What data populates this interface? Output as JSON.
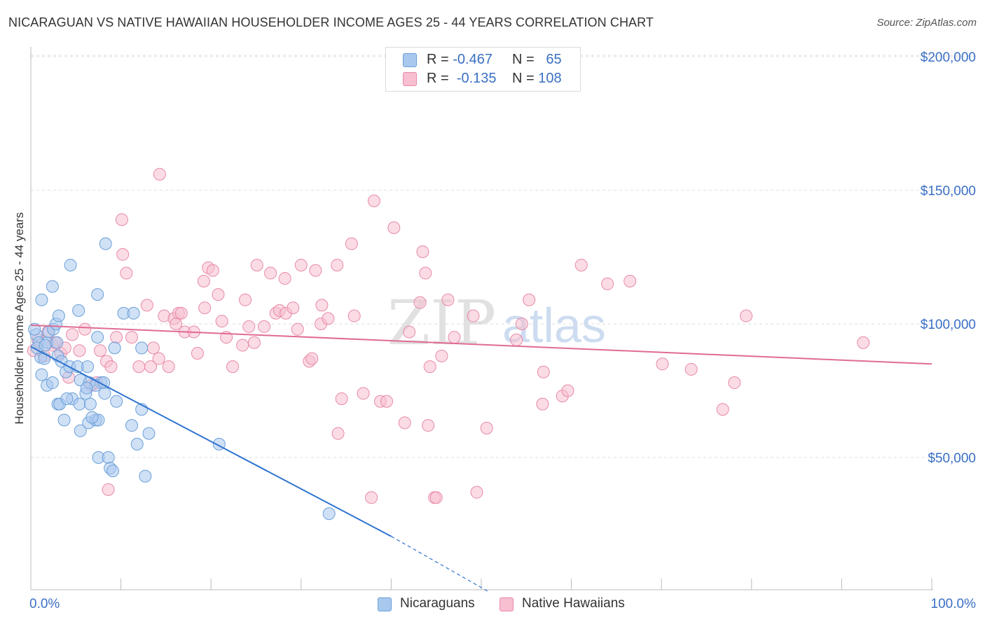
{
  "title": "NICARAGUAN VS NATIVE HAWAIIAN HOUSEHOLDER INCOME AGES 25 - 44 YEARS CORRELATION CHART",
  "source": "Source: ZipAtlas.com",
  "watermark": {
    "zip": "ZIP",
    "atlas": "atlas"
  },
  "legend": {
    "rows": [
      {
        "r_label": "R =",
        "r_value": "-0.467",
        "n_label": "N =",
        "n_value": "65",
        "color": "#a9c8ee",
        "border": "#6a9fd8"
      },
      {
        "r_label": "R =",
        "r_value": "-0.135",
        "n_label": "N =",
        "n_value": "108",
        "color": "#f7bfd0",
        "border": "#e889a8"
      }
    ]
  },
  "bottom_legend": [
    "Nicaraguans",
    "Native Hawaiians"
  ],
  "chart_data": {
    "type": "scatter",
    "title": "NICARAGUAN VS NATIVE HAWAIIAN HOUSEHOLDER INCOME AGES 25 - 44 YEARS CORRELATION CHART",
    "xlabel": "",
    "ylabel": "Householder Income Ages 25 - 44 years",
    "xlim": [
      0,
      100
    ],
    "ylim": [
      0,
      205000
    ],
    "x_tick_labels": [
      "0.0%",
      "100.0%"
    ],
    "y_ticks": [
      50000,
      100000,
      150000,
      200000
    ],
    "y_tick_labels": [
      "$50,000",
      "$100,000",
      "$150,000",
      "$200,000"
    ],
    "grid": "horizontal dashed",
    "legend_position": "top-center",
    "series": [
      {
        "name": "Nicaraguans",
        "color": "#a9c8ee",
        "edge": "#6a9fd8",
        "line_color": "#2f74d0",
        "trend": {
          "x0": 0,
          "y0": 91500,
          "x1": 40,
          "y1": 20500,
          "dash_to_x": 50.7,
          "dash_to_y": 0
        },
        "points": [
          [
            0.6,
            96000
          ],
          [
            0.9,
            93000
          ],
          [
            1.1,
            87500
          ],
          [
            0.7,
            91000
          ],
          [
            1.5,
            87000
          ],
          [
            1.8,
            93000
          ],
          [
            2.0,
            97000
          ],
          [
            2.5,
            98000
          ],
          [
            2.8,
            100000
          ],
          [
            3.0,
            88000
          ],
          [
            1.2,
            109000
          ],
          [
            2.4,
            114000
          ],
          [
            3.1,
            103000
          ],
          [
            4.4,
            122000
          ],
          [
            5.3,
            105000
          ],
          [
            7.4,
            111000
          ],
          [
            8.3,
            130000
          ],
          [
            10.3,
            104000
          ],
          [
            11.4,
            104000
          ],
          [
            7.4,
            95000
          ],
          [
            9.3,
            91000
          ],
          [
            12.3,
            91000
          ],
          [
            3.4,
            86000
          ],
          [
            3.9,
            82000
          ],
          [
            4.3,
            84000
          ],
          [
            5.2,
            84000
          ],
          [
            6.3,
            84000
          ],
          [
            7.8,
            78000
          ],
          [
            5.5,
            79000
          ],
          [
            6.5,
            78000
          ],
          [
            7.2,
            77000
          ],
          [
            8.1,
            78000
          ],
          [
            1.2,
            81000
          ],
          [
            1.8,
            77000
          ],
          [
            2.4,
            78000
          ],
          [
            3.0,
            70000
          ],
          [
            3.2,
            70000
          ],
          [
            4.6,
            72000
          ],
          [
            5.4,
            70000
          ],
          [
            6.6,
            70000
          ],
          [
            6.1,
            74000
          ],
          [
            6.2,
            76000
          ],
          [
            8.2,
            74000
          ],
          [
            9.5,
            71000
          ],
          [
            12.3,
            68000
          ],
          [
            3.7,
            64000
          ],
          [
            5.5,
            60000
          ],
          [
            6.4,
            63000
          ],
          [
            7.2,
            64000
          ],
          [
            7.5,
            64000
          ],
          [
            11.2,
            62000
          ],
          [
            11.8,
            55000
          ],
          [
            13.1,
            59000
          ],
          [
            7.5,
            50000
          ],
          [
            8.6,
            50000
          ],
          [
            8.8,
            46000
          ],
          [
            9.1,
            45000
          ],
          [
            12.7,
            43000
          ],
          [
            20.9,
            55000
          ],
          [
            33.1,
            29000
          ],
          [
            0.4,
            98000
          ],
          [
            1.6,
            92000
          ],
          [
            4.0,
            72000
          ],
          [
            6.8,
            65000
          ],
          [
            2.9,
            93000
          ]
        ]
      },
      {
        "name": "Native Hawaiians",
        "color": "#f7bfd0",
        "edge": "#e889a8",
        "line_color": "#e06b95",
        "trend": {
          "x0": 0,
          "y0": 99500,
          "x1": 100,
          "y1": 85000
        },
        "points": [
          [
            0.3,
            90000
          ],
          [
            0.8,
            94000
          ],
          [
            1.5,
            88000
          ],
          [
            1.9,
            97000
          ],
          [
            2.4,
            92000
          ],
          [
            2.7,
            93000
          ],
          [
            3.3,
            89000
          ],
          [
            3.8,
            91000
          ],
          [
            4.6,
            96000
          ],
          [
            6.0,
            98000
          ],
          [
            7.7,
            90000
          ],
          [
            8.4,
            86000
          ],
          [
            9.5,
            95000
          ],
          [
            13.3,
            84000
          ],
          [
            13.6,
            91000
          ],
          [
            14.2,
            87000
          ],
          [
            15.3,
            84000
          ],
          [
            14.8,
            103000
          ],
          [
            15.9,
            102000
          ],
          [
            16.4,
            104000
          ],
          [
            16.7,
            104000
          ],
          [
            16.1,
            100000
          ],
          [
            17.1,
            97000
          ],
          [
            18.1,
            97000
          ],
          [
            18.5,
            89000
          ],
          [
            19.2,
            116000
          ],
          [
            19.3,
            106000
          ],
          [
            19.7,
            121000
          ],
          [
            20.2,
            120000
          ],
          [
            20.8,
            111000
          ],
          [
            21.2,
            101000
          ],
          [
            21.7,
            95000
          ],
          [
            22.4,
            84000
          ],
          [
            23.5,
            92000
          ],
          [
            23.8,
            109000
          ],
          [
            24.2,
            99000
          ],
          [
            24.8,
            93000
          ],
          [
            25.1,
            122000
          ],
          [
            25.9,
            99000
          ],
          [
            26.6,
            119000
          ],
          [
            27.2,
            104000
          ],
          [
            27.6,
            105000
          ],
          [
            28.3,
            104000
          ],
          [
            28.2,
            117000
          ],
          [
            29.1,
            106000
          ],
          [
            29.6,
            98000
          ],
          [
            30.0,
            122000
          ],
          [
            30.9,
            86000
          ],
          [
            31.2,
            87000
          ],
          [
            31.6,
            120000
          ],
          [
            32.2,
            100000
          ],
          [
            32.3,
            107000
          ],
          [
            33.0,
            102000
          ],
          [
            34.0,
            122000
          ],
          [
            34.5,
            72000
          ],
          [
            34.1,
            59000
          ],
          [
            35.6,
            130000
          ],
          [
            35.9,
            103000
          ],
          [
            36.9,
            74000
          ],
          [
            37.8,
            35000
          ],
          [
            38.1,
            146000
          ],
          [
            38.8,
            71000
          ],
          [
            39.5,
            71000
          ],
          [
            40.3,
            136000
          ],
          [
            41.5,
            63000
          ],
          [
            42.0,
            97000
          ],
          [
            43.2,
            108000
          ],
          [
            43.5,
            127000
          ],
          [
            43.8,
            119000
          ],
          [
            44.1,
            62000
          ],
          [
            44.3,
            84000
          ],
          [
            44.8,
            35000
          ],
          [
            45.0,
            35000
          ],
          [
            45.6,
            88000
          ],
          [
            46.3,
            109000
          ],
          [
            47.0,
            95000
          ],
          [
            49.1,
            103000
          ],
          [
            49.5,
            37000
          ],
          [
            50.6,
            61000
          ],
          [
            53.9,
            94000
          ],
          [
            54.5,
            100000
          ],
          [
            55.3,
            109000
          ],
          [
            56.8,
            70000
          ],
          [
            56.9,
            82000
          ],
          [
            59.0,
            73000
          ],
          [
            59.6,
            75000
          ],
          [
            61.1,
            122000
          ],
          [
            64.0,
            115000
          ],
          [
            66.5,
            116000
          ],
          [
            70.1,
            85000
          ],
          [
            73.3,
            83000
          ],
          [
            76.8,
            68000
          ],
          [
            78.1,
            78000
          ],
          [
            79.4,
            103000
          ],
          [
            92.4,
            93000
          ],
          [
            8.9,
            84000
          ],
          [
            10.2,
            126000
          ],
          [
            10.6,
            119000
          ],
          [
            10.1,
            139000
          ],
          [
            11.2,
            95000
          ],
          [
            12.0,
            84000
          ],
          [
            14.3,
            156000
          ],
          [
            6.7,
            77000
          ],
          [
            7.3,
            78000
          ],
          [
            5.4,
            90000
          ],
          [
            4.2,
            80000
          ],
          [
            8.6,
            38000
          ],
          [
            12.9,
            107000
          ]
        ]
      }
    ]
  }
}
